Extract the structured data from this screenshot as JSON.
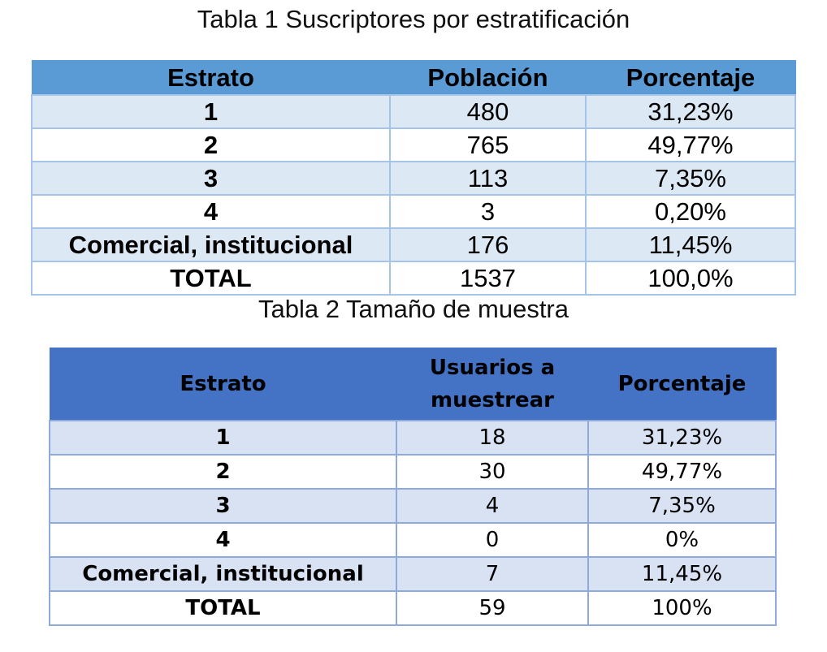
{
  "table1": {
    "caption": "Tabla 1 Suscriptores por estratificación",
    "headers": [
      "Estrato",
      "Población",
      "Porcentaje"
    ],
    "rows": [
      [
        "1",
        "480",
        "31,23%"
      ],
      [
        "2",
        "765",
        "49,77%"
      ],
      [
        "3",
        "113",
        "7,35%"
      ],
      [
        "4",
        "3",
        "0,20%"
      ],
      [
        "Comercial, institucional",
        "176",
        "11,45%"
      ],
      [
        "TOTAL",
        "1537",
        "100,0%"
      ]
    ],
    "colors": {
      "header": "#5b9bd5",
      "band": "#dde8f5",
      "border": "#a6c4e8"
    }
  },
  "table2": {
    "caption": "Tabla 2 Tamaño de muestra",
    "headers": [
      "Estrato",
      "Usuarios a muestrear",
      "Porcentaje"
    ],
    "rows": [
      [
        "1",
        "18",
        "31,23%"
      ],
      [
        "2",
        "30",
        "49,77%"
      ],
      [
        "3",
        "4",
        "7,35%"
      ],
      [
        "4",
        "0",
        "0%"
      ],
      [
        "Comercial, institucional",
        "7",
        "11,45%"
      ],
      [
        "TOTAL",
        "59",
        "100%"
      ]
    ],
    "colors": {
      "header": "#4472c4",
      "band": "#d9e2f3",
      "border": "#8eaadb"
    }
  }
}
